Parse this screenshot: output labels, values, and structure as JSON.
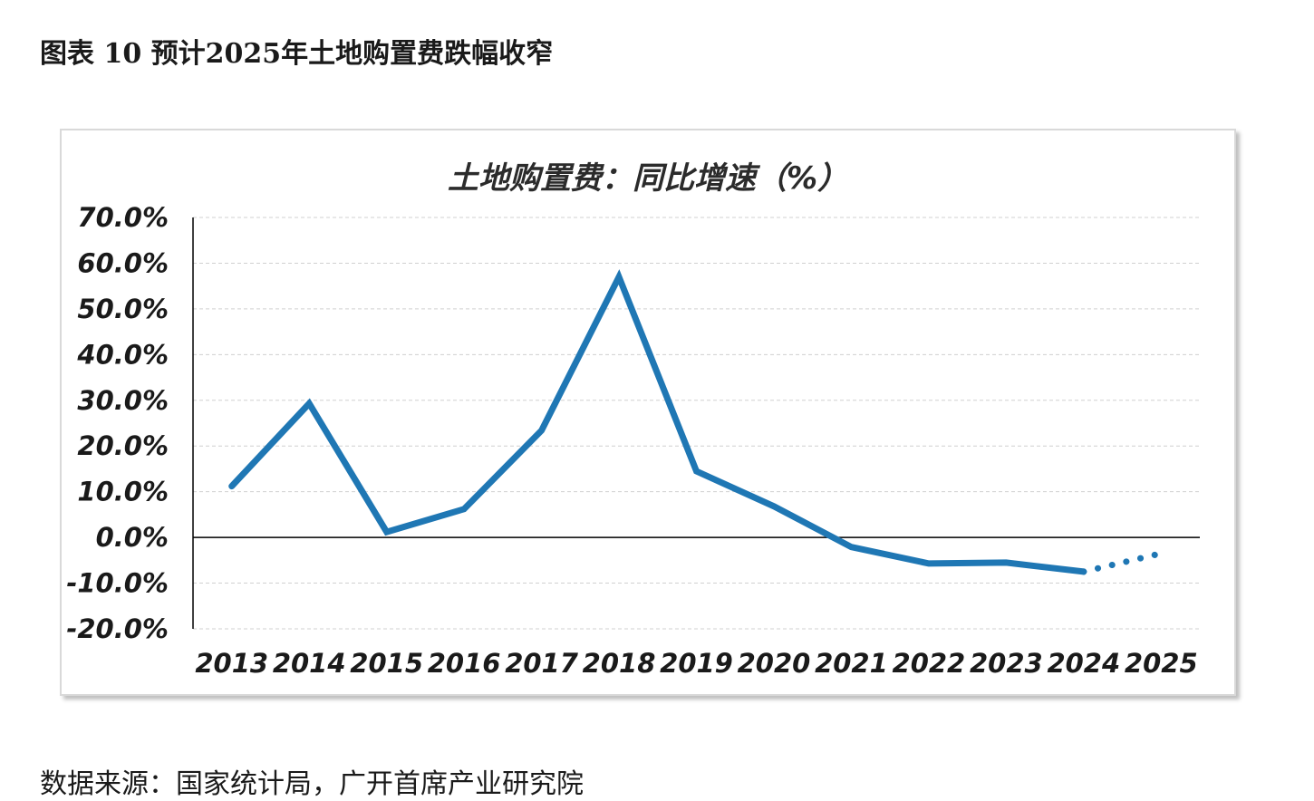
{
  "figure_title": "图表 10 预计2025年土地购置费跌幅收窄",
  "source": "数据来源：国家统计局，广开首席产业研究院",
  "chart_data": {
    "type": "line",
    "title": "土地购置费：同比增速（%）",
    "xlabel": "",
    "ylabel": "",
    "categories": [
      "2013",
      "2014",
      "2015",
      "2016",
      "2017",
      "2018",
      "2019",
      "2020",
      "2021",
      "2022",
      "2023",
      "2024",
      "2025"
    ],
    "series": [
      {
        "values": [
          11.2,
          29.3,
          1.2,
          6.2,
          23.4,
          57.0,
          14.5,
          6.8,
          -2.1,
          -5.7,
          -5.5,
          -7.5,
          -3.5
        ],
        "color": "#1f77b4",
        "dashed_last_segment": true
      }
    ],
    "ylim": [
      -20,
      70
    ],
    "yticks": [
      "70.0%",
      "60.0%",
      "50.0%",
      "40.0%",
      "30.0%",
      "20.0%",
      "10.0%",
      "0.0%",
      "-10.0%",
      "-20.0%"
    ],
    "ytick_values": [
      70,
      60,
      50,
      40,
      30,
      20,
      10,
      0,
      -10,
      -20
    ],
    "grid": true
  }
}
